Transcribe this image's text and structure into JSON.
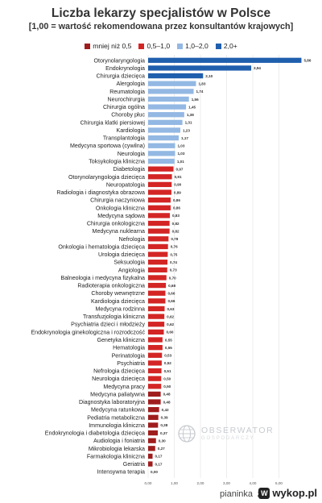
{
  "header": {
    "title": "Liczba lekarzy specjalistów w Polsce",
    "subtitle": "[1,00 = wartość rekomendowana przez konsultantów krajowych]"
  },
  "legend": [
    {
      "label": "mniej niż 0,5",
      "color": "#a01d1d"
    },
    {
      "label": "0,5–1,0",
      "color": "#d42525"
    },
    {
      "label": "1,0–2,0",
      "color": "#93b8e3"
    },
    {
      "label": "2,0+",
      "color": "#1f5fad"
    }
  ],
  "watermark": {
    "line1": "OBSERWATOR",
    "line2": "GOSPODARCZY",
    "icon": "globe-icon"
  },
  "footer": {
    "user": "pianinka",
    "sep": "z",
    "site": "wykop.pl",
    "logo_letter": "W"
  },
  "chart_data": {
    "type": "bar",
    "orientation": "horizontal",
    "title": "Liczba lekarzy specjalistów w Polsce",
    "subtitle": "[1,00 = wartość rekomendowana przez konsultantów krajowych]",
    "xlim": [
      0,
      6
    ],
    "xticks": [
      "0,00",
      "1,00",
      "2,00",
      "3,00",
      "4,00",
      "5,00"
    ],
    "xtick_values": [
      0,
      1,
      2,
      3,
      4,
      5
    ],
    "grid": true,
    "legend_position": "top",
    "bins": [
      {
        "label": "mniej niż 0,5",
        "min": 0,
        "max": 0.5,
        "color": "#a01d1d"
      },
      {
        "label": "0,5–1,0",
        "min": 0.5,
        "max": 1.0,
        "color": "#d42525"
      },
      {
        "label": "1,0–2,0",
        "min": 1.0,
        "max": 2.0,
        "color": "#93b8e3"
      },
      {
        "label": "2,0+",
        "min": 2.0,
        "max": 99,
        "color": "#1f5fad"
      }
    ],
    "categories": [
      "Otorynolaryngologia",
      "Endokrynologia",
      "Chirurgia dziecięca",
      "Alergologia",
      "Reumatologia",
      "Neurochirurgia",
      "Chirurgia ogólna",
      "Choroby płuc",
      "Chirurgia klatki piersiowej",
      "Kardiologia",
      "Transplantologia",
      "Medycyna sportowa (cywilna)",
      "Neurologia",
      "Toksykologia kliniczna",
      "Diabetologia",
      "Otorynolaryngologia dziecięca",
      "Neuropatologia",
      "Radiologia i diagnostyka obrazowa",
      "Chirurgia naczyniowa",
      "Onkologia kliniczna",
      "Medycyna sądowa",
      "Chirurgia onkologiczna",
      "Medycyna nuklearna",
      "Nefrologia",
      "Onkologia i hematologia dziecięca",
      "Urologia dziecięca",
      "Seksuologia",
      "Angiologia",
      "Balneologia i medycyna fizykalna",
      "Radioterapia onkologiczna",
      "Choroby wewnętrzne",
      "Kardiologia dziecięca",
      "Medycyna rodzinna",
      "Transfuzjologia kliniczna",
      "Psychiatria dzieci i młodzieży",
      "Endokrynologia ginekologiczna i rozrodczość",
      "Genetyka kliniczna",
      "Hematologia",
      "Perinatologia",
      "Psychiatria",
      "Nefrologia dziecięca",
      "Neurologia dziecięca",
      "Medycyna pracy",
      "Medycyna paliatywna",
      "Diagnostyka laboratoryjna",
      "Medycyna ratunkowa",
      "Pediatria metaboliczna",
      "Immunologia kliniczna",
      "Endokrynologia i diabetologia dziecięca",
      "Audiologia i foniatria",
      "Mikrobiologia lekarska",
      "Farmakologia kliniczna",
      "Geriatria",
      "Intensywna terapia"
    ],
    "values": [
      5.86,
      3.94,
      2.1,
      1.83,
      1.74,
      1.56,
      1.45,
      1.38,
      1.31,
      1.23,
      1.17,
      1.03,
      1.03,
      1.01,
      0.97,
      0.91,
      0.9,
      0.89,
      0.86,
      0.86,
      0.83,
      0.82,
      0.82,
      0.78,
      0.76,
      0.75,
      0.74,
      0.73,
      0.7,
      0.68,
      0.66,
      0.66,
      0.63,
      0.62,
      0.62,
      0.6,
      0.55,
      0.55,
      0.53,
      0.52,
      0.51,
      0.5,
      0.5,
      0.48,
      0.48,
      0.42,
      0.39,
      0.38,
      0.37,
      0.3,
      0.27,
      0.17,
      0.17,
      0.0
    ],
    "value_labels": [
      "5,86",
      "3,94",
      "2,10",
      "1,83",
      "1,74",
      "1,56",
      "1,45",
      "1,38",
      "1,31",
      "1,23",
      "1,17",
      "1,03",
      "1,03",
      "1,01",
      "0,97",
      "0,91",
      "0,90",
      "0,89",
      "0,86",
      "0,86",
      "0,83",
      "0,82",
      "0,82",
      "0,78",
      "0,76",
      "0,75",
      "0,74",
      "0,73",
      "0,70",
      "0,68",
      "0,66",
      "0,66",
      "0,63",
      "0,62",
      "0,62",
      "0,60",
      "0,55",
      "0,55",
      "0,53",
      "0,52",
      "0,51",
      "0,50",
      "0,50",
      "0,48",
      "0,48",
      "0,42",
      "0,39",
      "0,38",
      "0,37",
      "0,30",
      "0,27",
      "0,17",
      "0,17",
      "0,00"
    ]
  }
}
